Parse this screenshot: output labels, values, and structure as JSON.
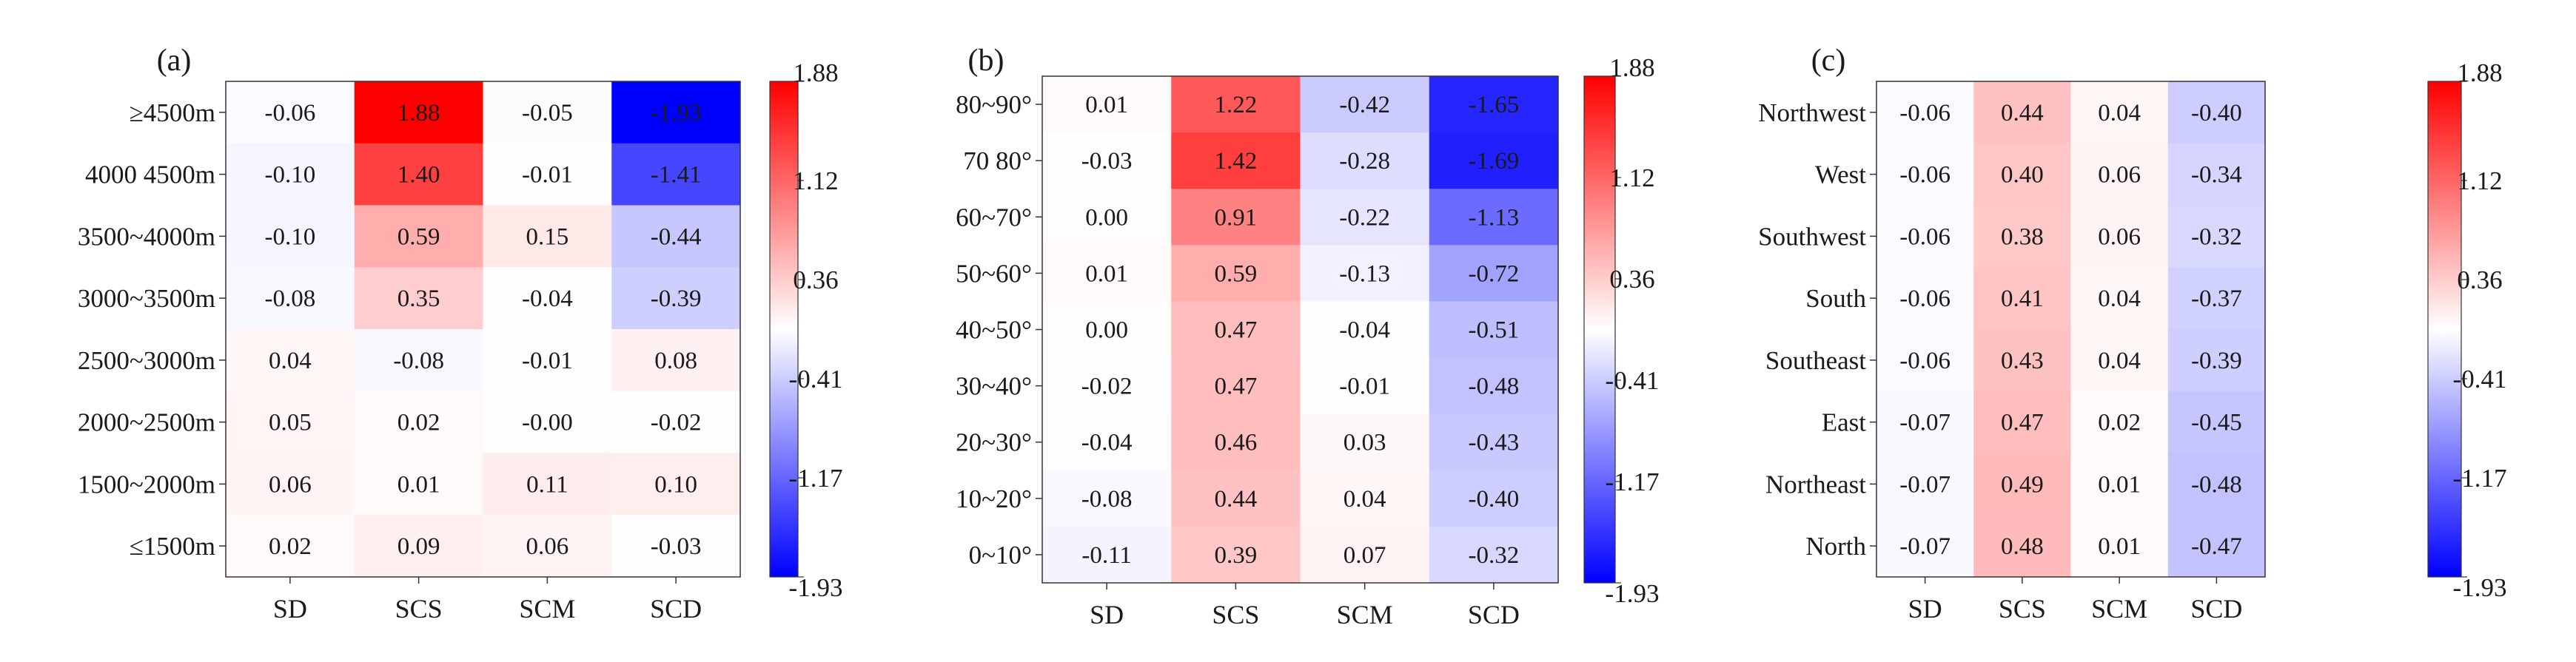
{
  "chart_data": [
    {
      "type": "heatmap",
      "panel_label": "(a)",
      "title": "",
      "x_categories": [
        "SD",
        "SCS",
        "SCM",
        "SCD"
      ],
      "y_categories": [
        ">4500m",
        "4000-4500m",
        "3500~4000m",
        "3000~3500m",
        "2500~3000m",
        "2000~2500m",
        "1500~2000m",
        "<1500m"
      ],
      "y_tick_labels": [
        "≥4500m",
        "4000  4500m",
        "3500~4000m",
        "3000~3500m",
        "2500~3000m",
        "2000~2500m",
        "1500~2000m",
        "≤1500m"
      ],
      "values": [
        [
          -0.06,
          1.88,
          -0.05,
          -1.93
        ],
        [
          -0.1,
          1.4,
          -0.01,
          -1.41
        ],
        [
          -0.1,
          0.59,
          0.15,
          -0.44
        ],
        [
          -0.08,
          0.35,
          -0.04,
          -0.39
        ],
        [
          0.04,
          -0.08,
          -0.01,
          0.08
        ],
        [
          0.05,
          0.02,
          -0.0,
          -0.02
        ],
        [
          0.06,
          0.01,
          0.11,
          0.1
        ],
        [
          0.02,
          0.09,
          0.06,
          -0.03
        ]
      ],
      "cell_labels": [
        [
          "-0.06",
          "1.88",
          "-0.05",
          "-1.93"
        ],
        [
          "-0.10",
          "1.40",
          "-0.01",
          "-1.41"
        ],
        [
          "-0.10",
          "0.59",
          "0.15",
          "-0.44"
        ],
        [
          "-0.08",
          "0.35",
          "-0.04",
          "-0.39"
        ],
        [
          "0.04",
          "-0.08",
          "-0.01",
          "0.08"
        ],
        [
          "0.05",
          "0.02",
          "-0.00",
          "-0.02"
        ],
        [
          "0.06",
          "0.01",
          "0.11",
          "0.10"
        ],
        [
          "0.02",
          "0.09",
          "0.06",
          "-0.03"
        ]
      ],
      "colorbar": {
        "min": -1.93,
        "max": 1.88,
        "ticks": [
          "1.88",
          "1.12",
          "0.36",
          "-0.41",
          "-1.17",
          "-1.93"
        ],
        "colors": {
          "low": "#0000ff",
          "mid": "#ffffff",
          "high": "#ff0000"
        }
      }
    },
    {
      "type": "heatmap",
      "panel_label": "(b)",
      "title": "",
      "x_categories": [
        "SD",
        "SCS",
        "SCM",
        "SCD"
      ],
      "y_categories": [
        "80-90°",
        "70-80°",
        "60-70°",
        "50-60°",
        "40-50°",
        "30-40°",
        "20-30°",
        "10-20°",
        "0-10°"
      ],
      "y_tick_labels": [
        "80~90°",
        "70 80°",
        "60~70°",
        "50~60°",
        "40~50°",
        "30~40°",
        "20~30°",
        "10~20°",
        "0~10°"
      ],
      "values": [
        [
          0.01,
          1.22,
          -0.42,
          -1.65
        ],
        [
          -0.03,
          1.42,
          -0.28,
          -1.69
        ],
        [
          0.0,
          0.91,
          -0.22,
          -1.13
        ],
        [
          0.01,
          0.59,
          -0.13,
          -0.72
        ],
        [
          0.0,
          0.47,
          -0.04,
          -0.51
        ],
        [
          -0.02,
          0.47,
          -0.01,
          -0.48
        ],
        [
          -0.04,
          0.46,
          0.03,
          -0.43
        ],
        [
          -0.08,
          0.44,
          0.04,
          -0.4
        ],
        [
          -0.11,
          0.39,
          0.07,
          -0.32
        ]
      ],
      "cell_labels": [
        [
          "0.01",
          "1.22",
          "-0.42",
          "-1.65"
        ],
        [
          "-0.03",
          "1.42",
          "-0.28",
          "-1.69"
        ],
        [
          "0.00",
          "0.91",
          "-0.22",
          "-1.13"
        ],
        [
          "0.01",
          "0.59",
          "-0.13",
          "-0.72"
        ],
        [
          "0.00",
          "0.47",
          "-0.04",
          "-0.51"
        ],
        [
          "-0.02",
          "0.47",
          "-0.01",
          "-0.48"
        ],
        [
          "-0.04",
          "0.46",
          "0.03",
          "-0.43"
        ],
        [
          "-0.08",
          "0.44",
          "0.04",
          "-0.40"
        ],
        [
          "-0.11",
          "0.39",
          "0.07",
          "-0.32"
        ]
      ],
      "colorbar": {
        "min": -1.93,
        "max": 1.88,
        "ticks": [
          "1.88",
          "1.12",
          "0.36",
          "-0.41",
          "-1.17",
          "-1.93"
        ],
        "colors": {
          "low": "#0000ff",
          "mid": "#ffffff",
          "high": "#ff0000"
        }
      }
    },
    {
      "type": "heatmap",
      "panel_label": "(c)",
      "title": "",
      "x_categories": [
        "SD",
        "SCS",
        "SCM",
        "SCD"
      ],
      "y_categories": [
        "Northwest",
        "West",
        "Southwest",
        "South",
        "Southeast",
        "East",
        "Northeast",
        "North"
      ],
      "y_tick_labels": [
        "Northwest",
        "West",
        "Southwest",
        "South",
        "Southeast",
        "East",
        "Northeast",
        "North"
      ],
      "values": [
        [
          -0.06,
          0.44,
          0.04,
          -0.4
        ],
        [
          -0.06,
          0.4,
          0.06,
          -0.34
        ],
        [
          -0.06,
          0.38,
          0.06,
          -0.32
        ],
        [
          -0.06,
          0.41,
          0.04,
          -0.37
        ],
        [
          -0.06,
          0.43,
          0.04,
          -0.39
        ],
        [
          -0.07,
          0.47,
          0.02,
          -0.45
        ],
        [
          -0.07,
          0.49,
          0.01,
          -0.48
        ],
        [
          -0.07,
          0.48,
          0.01,
          -0.47
        ]
      ],
      "cell_labels": [
        [
          "-0.06",
          "0.44",
          "0.04",
          "-0.40"
        ],
        [
          "-0.06",
          "0.40",
          "0.06",
          "-0.34"
        ],
        [
          "-0.06",
          "0.38",
          "0.06",
          "-0.32"
        ],
        [
          "-0.06",
          "0.41",
          "0.04",
          "-0.37"
        ],
        [
          "-0.06",
          "0.43",
          "0.04",
          "-0.39"
        ],
        [
          "-0.07",
          "0.47",
          "0.02",
          "-0.45"
        ],
        [
          "-0.07",
          "0.49",
          "0.01",
          "-0.48"
        ],
        [
          "-0.07",
          "0.48",
          "0.01",
          "-0.47"
        ]
      ],
      "colorbar": {
        "min": -1.93,
        "max": 1.88,
        "ticks": [
          "1.88",
          "1.12",
          "0.36",
          "-0.41",
          "-1.17",
          "-1.93"
        ],
        "colors": {
          "low": "#0000ff",
          "mid": "#ffffff",
          "high": "#ff0000"
        }
      }
    }
  ]
}
